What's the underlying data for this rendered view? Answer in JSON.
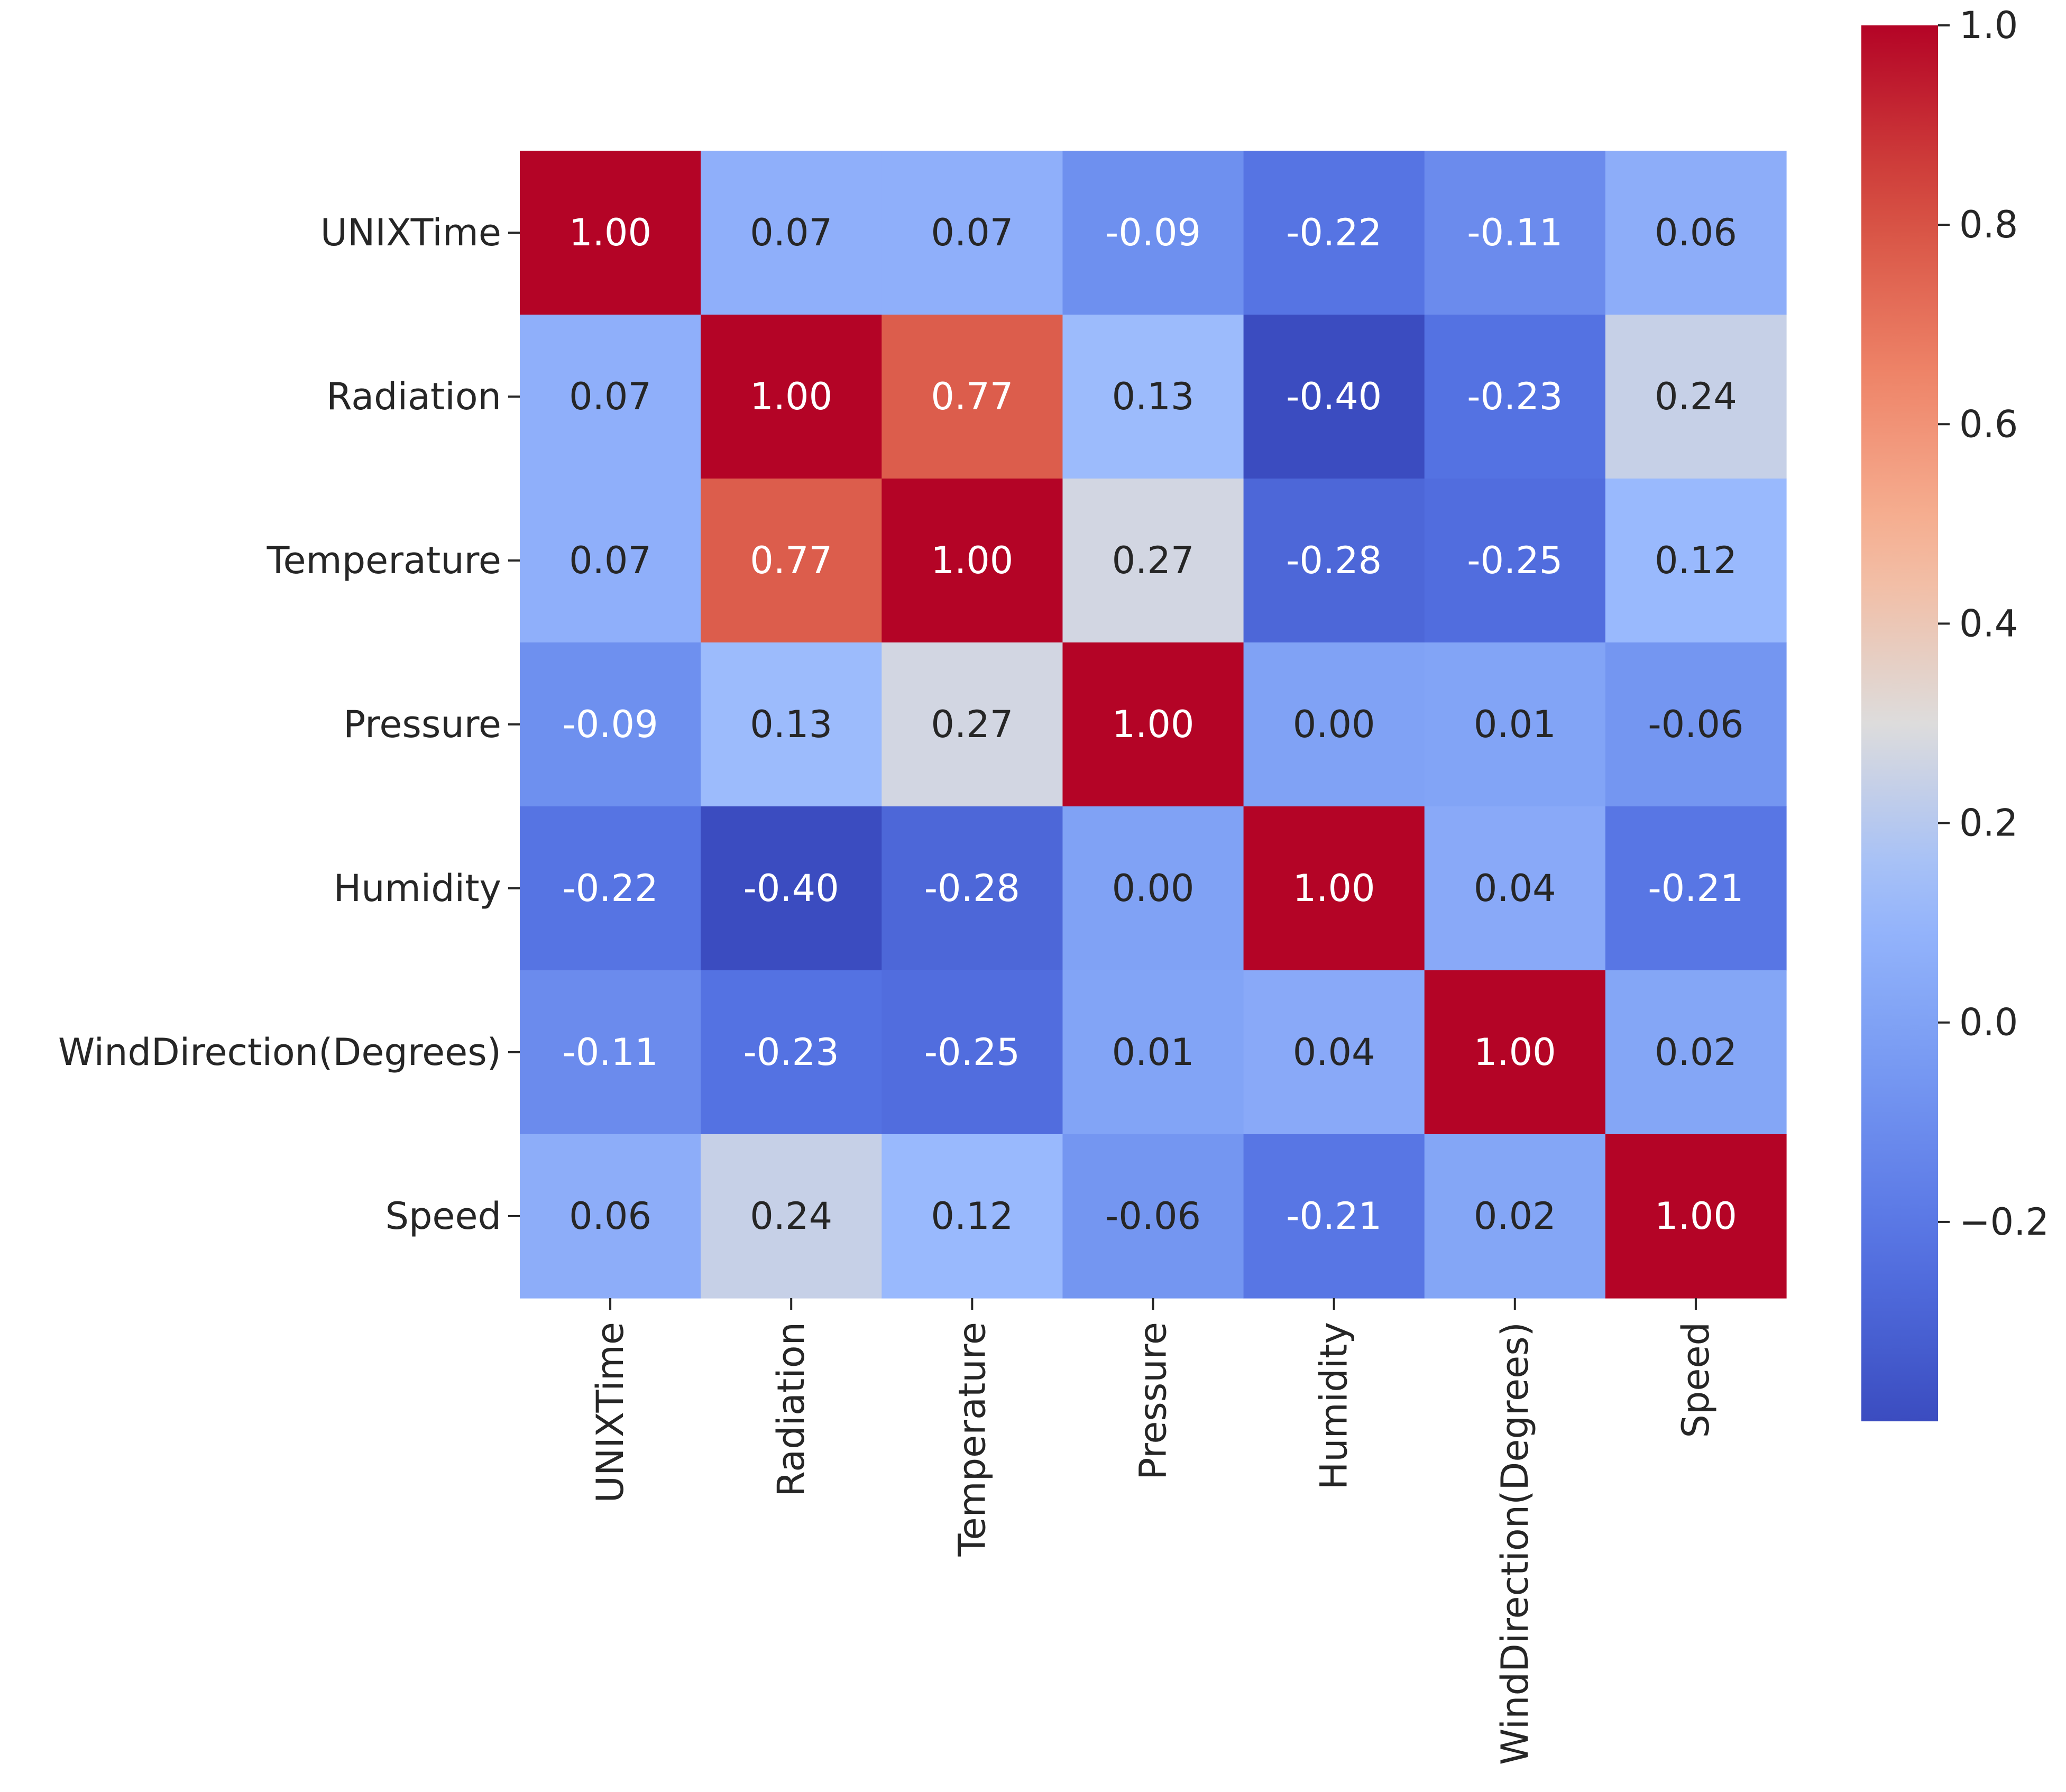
{
  "chart_data": {
    "type": "heatmap",
    "title": "",
    "xlabel": "",
    "ylabel": "",
    "labels": [
      "UNIXTime",
      "Radiation",
      "Temperature",
      "Pressure",
      "Humidity",
      "WindDirection(Degrees)",
      "Speed"
    ],
    "matrix": [
      [
        1.0,
        0.07,
        0.07,
        -0.09,
        -0.22,
        -0.11,
        0.06
      ],
      [
        0.07,
        1.0,
        0.77,
        0.13,
        -0.4,
        -0.23,
        0.24
      ],
      [
        0.07,
        0.77,
        1.0,
        0.27,
        -0.28,
        -0.25,
        0.12
      ],
      [
        -0.09,
        0.13,
        0.27,
        1.0,
        0.0,
        0.01,
        -0.06
      ],
      [
        -0.22,
        -0.4,
        -0.28,
        0.0,
        1.0,
        0.04,
        -0.21
      ],
      [
        -0.11,
        -0.23,
        -0.25,
        0.01,
        0.04,
        1.0,
        0.02
      ],
      [
        0.06,
        0.24,
        0.12,
        -0.06,
        -0.21,
        0.02,
        1.0
      ]
    ],
    "cell_labels": [
      [
        "1.00",
        "0.07",
        "0.07",
        "-0.09",
        "-0.22",
        "-0.11",
        "0.06"
      ],
      [
        "0.07",
        "1.00",
        "0.77",
        "0.13",
        "-0.40",
        "-0.23",
        "0.24"
      ],
      [
        "0.07",
        "0.77",
        "1.00",
        "0.27",
        "-0.28",
        "-0.25",
        "0.12"
      ],
      [
        "-0.09",
        "0.13",
        "0.27",
        "1.00",
        "0.00",
        "0.01",
        "-0.06"
      ],
      [
        "-0.22",
        "-0.40",
        "-0.28",
        "0.00",
        "1.00",
        "0.04",
        "-0.21"
      ],
      [
        "-0.11",
        "-0.23",
        "-0.25",
        "0.01",
        "0.04",
        "1.00",
        "0.02"
      ],
      [
        "0.06",
        "0.24",
        "0.12",
        "-0.06",
        "-0.21",
        "0.02",
        "1.00"
      ]
    ],
    "colormap": "coolwarm",
    "vmin": -0.4,
    "vmax": 1.0,
    "colorbar": {
      "ticks": [
        1.0,
        0.8,
        0.6,
        0.4,
        0.2,
        0.0,
        -0.2
      ],
      "tick_labels": [
        "1.0",
        "0.8",
        "0.6",
        "0.4",
        "0.2",
        "0.0",
        "−0.2"
      ],
      "placement": "right"
    },
    "legend": "none",
    "grid": false
  }
}
